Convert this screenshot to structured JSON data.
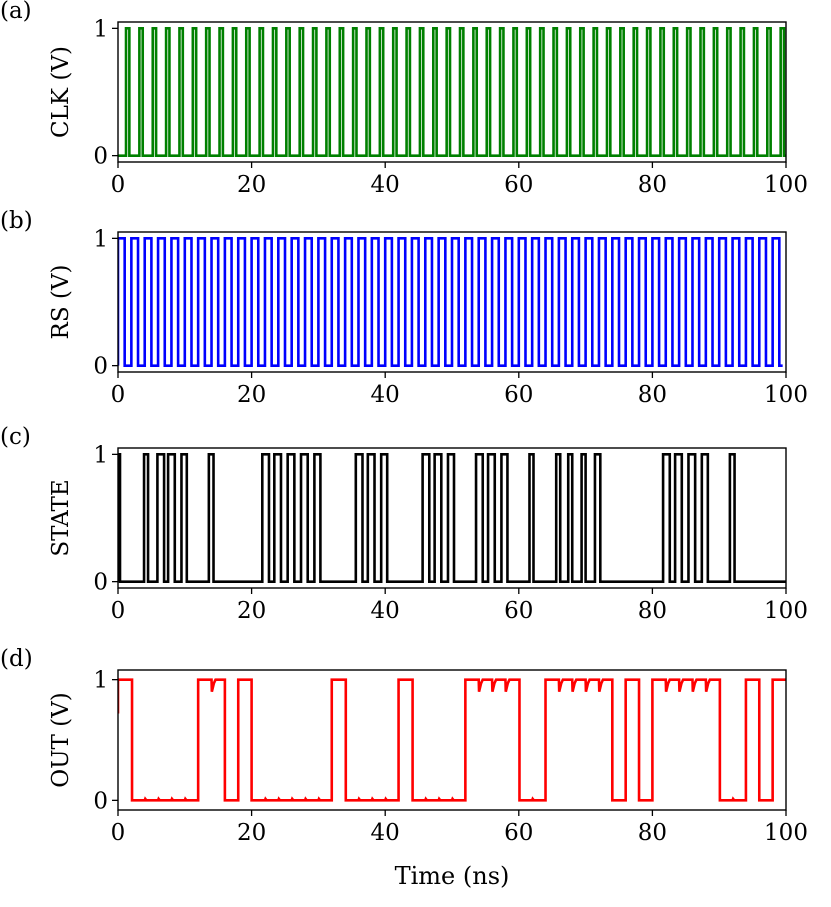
{
  "figure": {
    "xlabel": "Time (ns)"
  },
  "chart_data": [
    {
      "type": "line",
      "panel_label": "(a)",
      "ylabel": "CLK (V)",
      "xlim": [
        0,
        100
      ],
      "ylim": [
        -0.05,
        1.05
      ],
      "xticks": [
        0,
        20,
        40,
        60,
        80,
        100
      ],
      "yticks": [
        0,
        1
      ],
      "grid": false,
      "series": [
        {
          "color": "#008000",
          "description_of_values": "square pulse train, period 2 ns, high 0.5 ns",
          "pulse_train": {
            "period": 2,
            "high_start": 1.2,
            "high_width": 0.5,
            "low": 0,
            "high": 1,
            "t0": 0,
            "t1": 100
          }
        }
      ]
    },
    {
      "type": "line",
      "panel_label": "(b)",
      "ylabel": "RS (V)",
      "xlim": [
        0,
        100
      ],
      "ylim": [
        -0.05,
        1.05
      ],
      "xticks": [
        0,
        20,
        40,
        60,
        80,
        100
      ],
      "yticks": [
        0,
        1
      ],
      "grid": false,
      "series": [
        {
          "color": "#0000ff",
          "pulse_train": {
            "period": 2,
            "high_start": 0,
            "high_width": 1,
            "low": 0,
            "high": 1,
            "t0": 0,
            "t1": 99
          }
        }
      ]
    },
    {
      "type": "line",
      "panel_label": "(c)",
      "ylabel": "STATE",
      "xlim": [
        0,
        100
      ],
      "ylim": [
        -0.05,
        1.05
      ],
      "xticks": [
        0,
        20,
        40,
        60,
        80,
        100
      ],
      "yticks": [
        0,
        1
      ],
      "grid": false,
      "series": [
        {
          "color": "#000000",
          "pulses": [
            [
              0,
              0.3
            ],
            [
              3.9,
              4.5
            ],
            [
              5.9,
              6.9
            ],
            [
              7.5,
              8.5
            ],
            [
              9.5,
              10.3
            ],
            [
              13.6,
              14.3
            ],
            [
              21.6,
              22.6
            ],
            [
              23.4,
              24.4
            ],
            [
              25.4,
              26.4
            ],
            [
              27.4,
              28.4
            ],
            [
              29.4,
              30.3
            ],
            [
              35.6,
              36.6
            ],
            [
              37.4,
              38.4
            ],
            [
              39.4,
              40.3
            ],
            [
              45.6,
              46.6
            ],
            [
              47.4,
              48.4
            ],
            [
              49.4,
              50.3
            ],
            [
              53.6,
              54.6
            ],
            [
              55.4,
              56.4
            ],
            [
              57.4,
              58.3
            ],
            [
              61.6,
              62.2
            ],
            [
              65.6,
              66.2
            ],
            [
              67.4,
              68.0
            ],
            [
              69.4,
              70.0
            ],
            [
              71.4,
              72.2
            ],
            [
              81.6,
              82.6
            ],
            [
              83.4,
              84.4
            ],
            [
              85.4,
              86.4
            ],
            [
              87.4,
              88.3
            ],
            [
              91.6,
              92.3
            ]
          ]
        }
      ]
    },
    {
      "type": "line",
      "panel_label": "(d)",
      "ylabel": "OUT (V)",
      "xlim": [
        0,
        100
      ],
      "ylim": [
        -0.08,
        1.08
      ],
      "xticks": [
        0,
        20,
        40,
        60,
        80,
        100
      ],
      "yticks": [
        0,
        1
      ],
      "grid": false,
      "series": [
        {
          "color": "#ff0000",
          "start_value": 0.72,
          "high_intervals": [
            [
              0,
              2.1
            ],
            [
              12.0,
              16.0
            ],
            [
              18.0,
              20.0
            ],
            [
              32.0,
              34.1
            ],
            [
              42.0,
              44.1
            ],
            [
              52.0,
              60.1
            ],
            [
              64.0,
              74.0
            ],
            [
              76.0,
              78.0
            ],
            [
              80.0,
              90.1
            ],
            [
              94.0,
              96.0
            ],
            [
              98.0,
              100
            ]
          ],
          "ripple_period": 2,
          "ripple_depth": 0.1
        }
      ]
    }
  ]
}
